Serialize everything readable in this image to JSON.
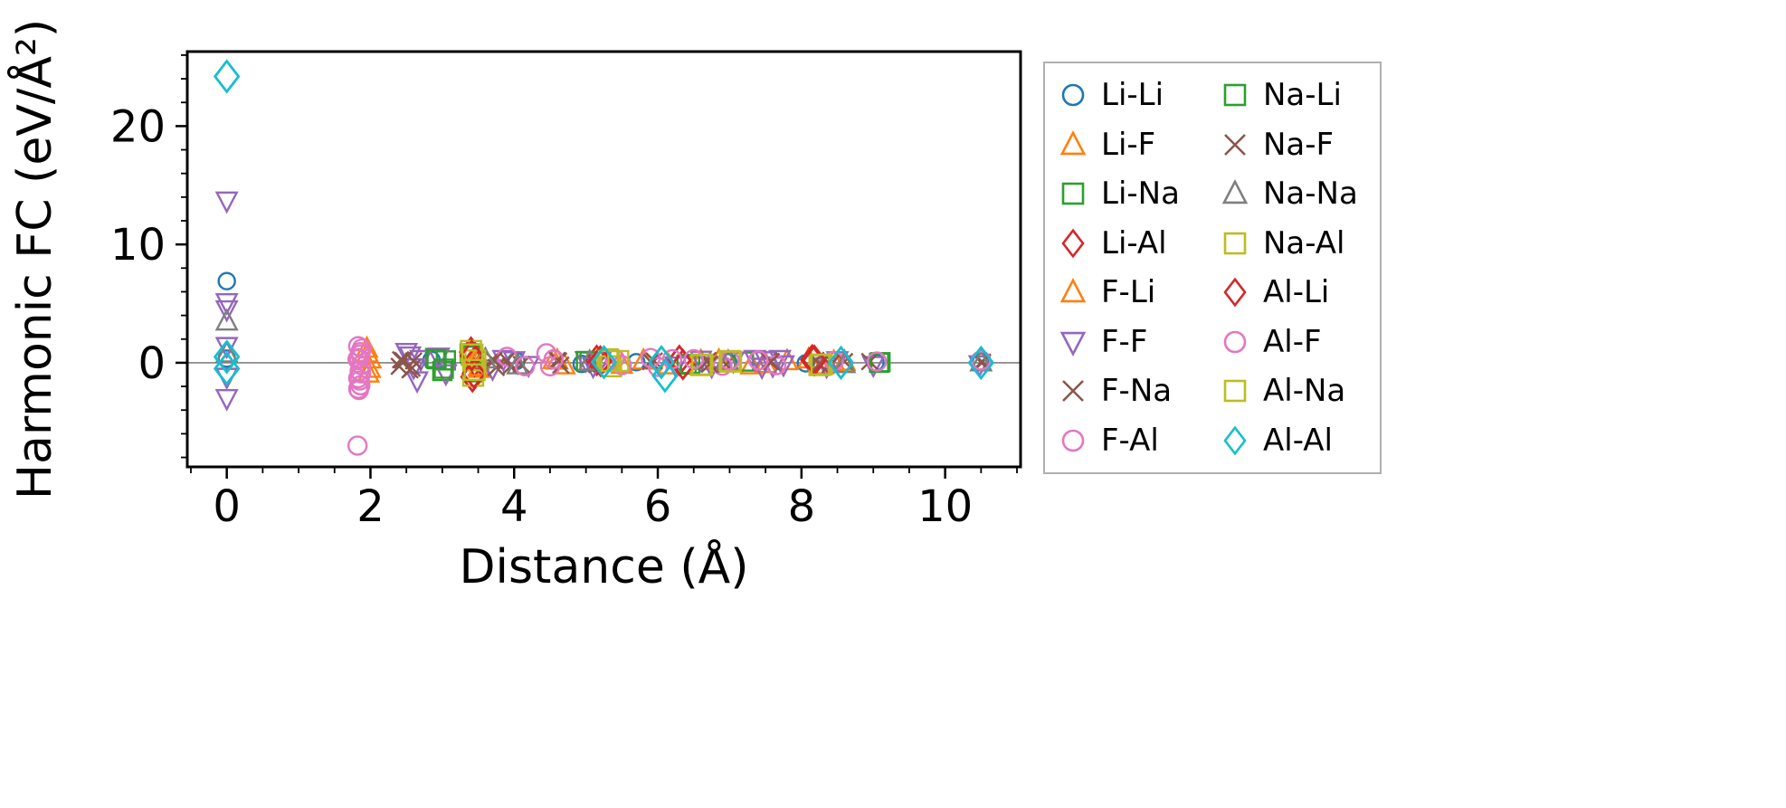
{
  "figure": {
    "background": "#ffffff",
    "frame_color": "#000000",
    "zero_line_color": "#808080",
    "legend_border_color": "#b0b0b0"
  },
  "chart_data": {
    "type": "scatter",
    "title": "",
    "xlabel": "Distance (Å)",
    "ylabel": "Harmonic FC (eV/Å²)",
    "xlim": [
      -0.55,
      11.05
    ],
    "ylim": [
      -8.8,
      26.3
    ],
    "xticks": [
      0,
      2,
      4,
      6,
      8,
      10
    ],
    "yticks": [
      0,
      10,
      20
    ],
    "x_minor_step": 0.5,
    "y_minor_step": 2,
    "grid": false,
    "zero_line": {
      "y": 0,
      "color": "#808080"
    },
    "legend_position": "outside-right",
    "series": [
      {
        "name": "Li-Li",
        "marker": "circle",
        "color": "#1f77b4",
        "size": 9,
        "x": [
          0,
          0,
          2.85,
          4.03,
          4.94,
          5.7,
          6.98,
          8.06,
          9.03,
          10.5
        ],
        "y": [
          6.9,
          0.35,
          0.25,
          0.15,
          -0.1,
          0.05,
          0.05,
          -0.05,
          0.02,
          0.1
        ]
      },
      {
        "name": "Li-F",
        "marker": "triangle-up",
        "color": "#ff7f0e",
        "size": 10,
        "x": [
          1.95,
          1.97,
          2.0,
          3.47,
          3.5,
          3.52,
          4.55,
          4.7,
          5.8,
          6.15,
          6.85,
          7.3,
          7.8,
          8.1,
          8.3,
          8.6
        ],
        "y": [
          1.2,
          -0.9,
          0.3,
          0.5,
          0.15,
          -0.5,
          0.25,
          -0.2,
          0.2,
          -0.2,
          0.2,
          -0.2,
          0.15,
          0.3,
          -0.2,
          0.1
        ]
      },
      {
        "name": "Li-Na",
        "marker": "square",
        "color": "#2ca02c",
        "size": 10,
        "x": [
          2.9,
          3.0,
          3.05,
          3.38,
          3.44,
          5.05,
          6.4,
          7.2,
          9.1
        ],
        "y": [
          0.4,
          -0.7,
          0.2,
          0.8,
          -0.8,
          0.1,
          -0.15,
          0.1,
          0.05
        ]
      },
      {
        "name": "Li-Al",
        "marker": "diamond",
        "color": "#d62728",
        "size": 12,
        "x": [
          3.4,
          3.42,
          3.45,
          5.15,
          6.3,
          8.15
        ],
        "y": [
          0.9,
          -1.2,
          0.1,
          0.2,
          0.2,
          0.25
        ]
      },
      {
        "name": "F-Li",
        "marker": "triangle-up",
        "color": "#ff7f0e",
        "size": 10,
        "x": [
          1.96,
          1.99,
          3.49,
          3.51,
          4.6,
          5.5,
          6.6,
          7.5,
          8.45
        ],
        "y": [
          0.8,
          -0.5,
          0.3,
          -0.35,
          0.2,
          -0.15,
          0.15,
          -0.1,
          0.1
        ]
      },
      {
        "name": "F-F",
        "marker": "triangle-down",
        "color": "#9467bd",
        "size": 10,
        "x": [
          0,
          0,
          0,
          0,
          0,
          0,
          2.5,
          2.55,
          2.6,
          2.65,
          2.7,
          2.95,
          3.05,
          3.7,
          3.85,
          4.0,
          4.2,
          5.0,
          5.1,
          5.2,
          6.25,
          6.6,
          6.75,
          7.05,
          7.35,
          7.45,
          7.5,
          7.6,
          7.7,
          7.75,
          8.35,
          8.5,
          9.0,
          10.48
        ],
        "y": [
          13.7,
          5.1,
          4.5,
          1.4,
          -1.2,
          -3.0,
          0.9,
          0.6,
          -0.4,
          -1.5,
          0.3,
          0.5,
          -0.9,
          -0.5,
          0.3,
          0.2,
          -0.2,
          0.2,
          -0.3,
          0.15,
          -0.25,
          0.25,
          -0.3,
          0.15,
          0.3,
          -0.35,
          0.2,
          -0.25,
          0.3,
          -0.15,
          -0.3,
          0.2,
          -0.2,
          -0.15
        ]
      },
      {
        "name": "F-Na",
        "marker": "x",
        "color": "#8c564b",
        "size": 9,
        "x": [
          2.4,
          2.45,
          2.55,
          2.6,
          3.7,
          3.75,
          3.9,
          4.1,
          4.6,
          4.65,
          5.15,
          5.95,
          6.7,
          6.95,
          7.55,
          8.2,
          8.4,
          8.6,
          8.95,
          10.52
        ],
        "y": [
          -0.3,
          0.2,
          -0.6,
          0.15,
          0.3,
          -0.4,
          0.2,
          -0.15,
          0.2,
          -0.2,
          -0.15,
          0.15,
          0.2,
          -0.15,
          0.15,
          0.2,
          -0.15,
          0.1,
          0.1,
          0.05
        ]
      },
      {
        "name": "F-Al",
        "marker": "circle",
        "color": "#e377c2",
        "size": 10,
        "x": [
          1.82,
          1.83,
          1.84,
          1.85,
          1.86,
          1.87,
          1.84,
          1.86,
          1.83,
          3.9,
          4.5,
          5.4,
          6.0,
          6.9,
          7.65,
          8.45,
          9.05
        ],
        "y": [
          -7.0,
          -1.3,
          -2.3,
          -0.7,
          -1.9,
          -0.2,
          0.4,
          0.9,
          1.4,
          0.5,
          -0.3,
          0.35,
          -0.35,
          -0.25,
          -0.2,
          0.15,
          0.1
        ]
      },
      {
        "name": "Na-Li",
        "marker": "square",
        "color": "#2ca02c",
        "size": 10,
        "x": [
          2.92,
          3.02,
          3.4,
          5.0,
          6.45,
          9.08
        ],
        "y": [
          0.3,
          -0.5,
          0.6,
          0.15,
          -0.1,
          0.0
        ]
      },
      {
        "name": "Na-F",
        "marker": "x",
        "color": "#8c564b",
        "size": 9,
        "x": [
          2.42,
          2.58,
          3.72,
          3.95,
          4.62,
          5.9,
          6.72,
          7.58,
          8.25,
          10.5
        ],
        "y": [
          0.25,
          -0.45,
          0.2,
          -0.3,
          0.15,
          0.1,
          -0.12,
          0.1,
          -0.1,
          0.03
        ]
      },
      {
        "name": "Na-Na",
        "marker": "triangle-up",
        "color": "#7f7f7f",
        "size": 10,
        "x": [
          0,
          0,
          3.6,
          4.05,
          5.05,
          6.98,
          8.6,
          10.5
        ],
        "y": [
          3.5,
          0.8,
          0.3,
          -0.2,
          0.1,
          0.1,
          -0.1,
          0.05
        ]
      },
      {
        "name": "Na-Al",
        "marker": "square",
        "color": "#bcbd22",
        "size": 11,
        "x": [
          3.4,
          3.43,
          3.46,
          5.3,
          5.35,
          6.6,
          7.0,
          8.25
        ],
        "y": [
          1.0,
          -1.1,
          0.2,
          0.3,
          -0.3,
          -0.2,
          0.15,
          -0.2
        ]
      },
      {
        "name": "Al-Li",
        "marker": "diamond",
        "color": "#d62728",
        "size": 12,
        "x": [
          3.41,
          3.44,
          5.2,
          6.35,
          8.18
        ],
        "y": [
          0.6,
          -0.9,
          0.15,
          -0.15,
          0.2
        ]
      },
      {
        "name": "Al-F",
        "marker": "circle",
        "color": "#e377c2",
        "size": 10,
        "x": [
          1.83,
          1.85,
          1.87,
          1.82,
          1.86,
          1.88,
          4.15,
          4.45,
          4.55,
          5.5,
          5.9,
          6.2,
          6.5,
          7.0,
          7.4,
          9.05,
          10.5
        ],
        "y": [
          -2.2,
          -1.5,
          -0.9,
          0.3,
          0.7,
          1.2,
          -0.3,
          0.8,
          0.3,
          -0.2,
          0.4,
          0.3,
          0.3,
          0.2,
          0.2,
          0.1,
          0.2
        ]
      },
      {
        "name": "Al-Na",
        "marker": "square",
        "color": "#bcbd22",
        "size": 11,
        "x": [
          3.42,
          3.45,
          5.32,
          5.45,
          6.62,
          7.02,
          8.28
        ],
        "y": [
          0.7,
          -0.6,
          0.15,
          0.15,
          -0.15,
          0.1,
          -0.15
        ]
      },
      {
        "name": "Al-Al",
        "marker": "diamond",
        "color": "#17becf",
        "size": 13,
        "x": [
          0,
          0,
          0,
          5.25,
          6.05,
          6.1,
          8.55,
          10.5
        ],
        "y": [
          24.2,
          0.5,
          -0.5,
          0.05,
          0.05,
          -1.1,
          0.0,
          0.0
        ]
      }
    ]
  }
}
